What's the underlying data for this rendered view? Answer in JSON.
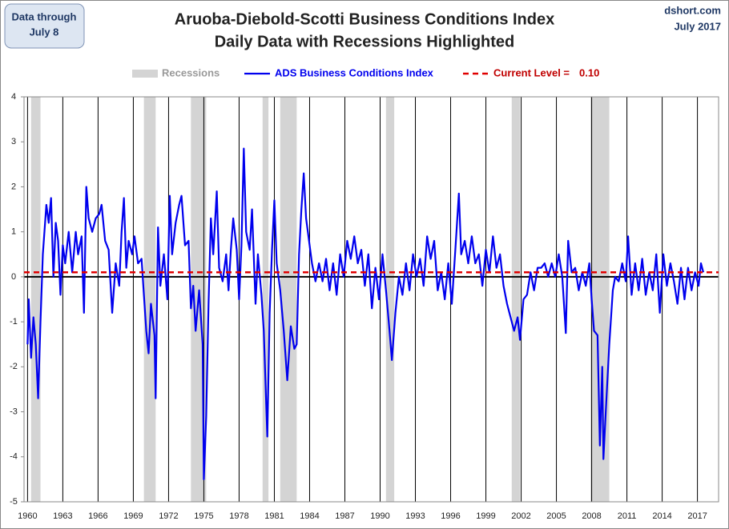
{
  "chart_data": {
    "type": "line",
    "title": "Aruoba-Diebold-Scotti Business Conditions Index",
    "subtitle": "Daily Data with Recessions Highlighted",
    "note": [
      "Data through",
      "July 8"
    ],
    "source": [
      "dshort.com",
      "July 2017"
    ],
    "xlim": [
      1959.7,
      2018.8
    ],
    "ylim": [
      -5,
      4
    ],
    "xticks": [
      1960,
      1963,
      1966,
      1969,
      1972,
      1975,
      1978,
      1981,
      1984,
      1987,
      1990,
      1993,
      1996,
      1999,
      2002,
      2005,
      2008,
      2011,
      2014,
      2017
    ],
    "yticks": [
      -5,
      -4,
      -3,
      -2,
      -1,
      0,
      1,
      2,
      3,
      4
    ],
    "recessions": {
      "name": "Recessions",
      "color": "#d4d4d4",
      "ranges": [
        [
          1960.3,
          1961.1
        ],
        [
          1969.9,
          1970.9
        ],
        [
          1973.9,
          1975.2
        ],
        [
          1980.0,
          1980.5
        ],
        [
          1981.5,
          1982.9
        ],
        [
          1990.5,
          1991.2
        ],
        [
          2001.2,
          2001.9
        ],
        [
          2007.9,
          2009.5
        ]
      ]
    },
    "reference_line": {
      "name": "Current Level =",
      "value": 0.1,
      "label": "0.10",
      "color": "#e00000"
    },
    "x": [
      1960.0,
      1960.1,
      1960.3,
      1960.5,
      1960.7,
      1960.9,
      1961.1,
      1961.3,
      1961.6,
      1961.8,
      1962.0,
      1962.2,
      1962.4,
      1962.6,
      1962.8,
      1963.0,
      1963.2,
      1963.5,
      1963.8,
      1964.1,
      1964.3,
      1964.6,
      1964.8,
      1965.0,
      1965.2,
      1965.5,
      1965.8,
      1966.1,
      1966.3,
      1966.6,
      1966.9,
      1967.2,
      1967.5,
      1967.8,
      1968.0,
      1968.2,
      1968.4,
      1968.6,
      1968.9,
      1969.1,
      1969.4,
      1969.7,
      1969.9,
      1970.1,
      1970.3,
      1970.5,
      1970.8,
      1970.9,
      1971.1,
      1971.3,
      1971.6,
      1971.9,
      1972.1,
      1972.3,
      1972.6,
      1972.9,
      1973.1,
      1973.4,
      1973.7,
      1973.9,
      1974.1,
      1974.3,
      1974.6,
      1974.9,
      1975.0,
      1975.2,
      1975.4,
      1975.6,
      1975.8,
      1976.1,
      1976.3,
      1976.6,
      1976.9,
      1977.1,
      1977.3,
      1977.5,
      1977.8,
      1978.0,
      1978.2,
      1978.4,
      1978.6,
      1978.9,
      1979.1,
      1979.4,
      1979.6,
      1979.9,
      1980.1,
      1980.4,
      1980.6,
      1980.8,
      1981.0,
      1981.2,
      1981.5,
      1981.8,
      1982.1,
      1982.4,
      1982.7,
      1982.9,
      1983.1,
      1983.3,
      1983.5,
      1983.7,
      1983.9,
      1984.2,
      1984.5,
      1984.8,
      1985.1,
      1985.4,
      1985.7,
      1986.0,
      1986.3,
      1986.6,
      1986.9,
      1987.2,
      1987.5,
      1987.8,
      1988.1,
      1988.4,
      1988.7,
      1989.0,
      1989.3,
      1989.6,
      1989.9,
      1990.2,
      1990.5,
      1990.8,
      1991.0,
      1991.3,
      1991.6,
      1991.9,
      1992.2,
      1992.5,
      1992.8,
      1993.1,
      1993.4,
      1993.7,
      1994.0,
      1994.3,
      1994.6,
      1994.9,
      1995.2,
      1995.5,
      1995.8,
      1996.1,
      1996.4,
      1996.7,
      1996.9,
      1997.2,
      1997.5,
      1997.8,
      1998.1,
      1998.4,
      1998.7,
      1999.0,
      1999.3,
      1999.6,
      1999.9,
      2000.2,
      2000.5,
      2000.8,
      2001.1,
      2001.4,
      2001.7,
      2001.9,
      2002.2,
      2002.5,
      2002.8,
      2003.1,
      2003.4,
      2003.7,
      2004.0,
      2004.3,
      2004.6,
      2004.9,
      2005.2,
      2005.5,
      2005.8,
      2006.0,
      2006.3,
      2006.6,
      2006.9,
      2007.2,
      2007.5,
      2007.8,
      2008.0,
      2008.2,
      2008.5,
      2008.7,
      2008.9,
      2009.0,
      2009.2,
      2009.5,
      2009.8,
      2010.0,
      2010.3,
      2010.6,
      2010.9,
      2011.1,
      2011.4,
      2011.7,
      2012.0,
      2012.3,
      2012.6,
      2012.9,
      2013.2,
      2013.5,
      2013.8,
      2014.1,
      2014.4,
      2014.7,
      2015.0,
      2015.3,
      2015.6,
      2015.9,
      2016.2,
      2016.5,
      2016.8,
      2017.1,
      2017.3,
      2017.5
    ],
    "series": [
      {
        "name": "ADS Business Conditions Index",
        "color": "#0000ee",
        "values": [
          -1.5,
          -0.5,
          -1.8,
          -0.9,
          -1.5,
          -2.7,
          -1.0,
          0.5,
          1.6,
          1.2,
          1.75,
          0.0,
          1.2,
          0.8,
          -0.4,
          0.7,
          0.3,
          1.0,
          0.1,
          1.0,
          0.5,
          0.9,
          -0.8,
          2.0,
          1.3,
          1.0,
          1.3,
          1.4,
          1.6,
          0.8,
          0.6,
          -0.8,
          0.3,
          -0.2,
          1.0,
          1.75,
          0.2,
          0.8,
          0.5,
          0.9,
          0.3,
          0.4,
          -0.4,
          -1.2,
          -1.7,
          -0.6,
          -1.3,
          -2.7,
          1.1,
          -0.2,
          0.5,
          -0.5,
          1.8,
          0.5,
          1.2,
          1.6,
          1.8,
          0.7,
          0.8,
          -0.7,
          -0.2,
          -1.2,
          -0.3,
          -1.5,
          -4.5,
          -3.1,
          -0.6,
          1.3,
          0.5,
          1.9,
          0.2,
          -0.1,
          0.5,
          -0.3,
          0.6,
          1.3,
          0.6,
          -0.5,
          0.7,
          2.85,
          1.0,
          0.6,
          1.5,
          -0.6,
          0.5,
          -0.4,
          -1.2,
          -3.55,
          -0.8,
          0.6,
          1.7,
          0.3,
          -0.3,
          -1.2,
          -2.3,
          -1.1,
          -1.6,
          -1.5,
          0.5,
          1.5,
          2.3,
          1.3,
          0.9,
          0.3,
          -0.1,
          0.3,
          -0.1,
          0.4,
          -0.3,
          0.3,
          -0.4,
          0.5,
          0.0,
          0.8,
          0.4,
          0.9,
          0.3,
          0.6,
          -0.2,
          0.5,
          -0.7,
          0.2,
          -0.5,
          0.5,
          -0.3,
          -1.2,
          -1.85,
          -0.8,
          0.0,
          -0.4,
          0.3,
          -0.3,
          0.5,
          0.0,
          0.4,
          -0.2,
          0.9,
          0.4,
          0.8,
          -0.3,
          0.1,
          -0.5,
          0.3,
          -0.6,
          0.6,
          1.85,
          0.5,
          0.8,
          0.3,
          0.9,
          0.3,
          0.5,
          -0.2,
          0.6,
          0.1,
          0.9,
          0.2,
          0.5,
          -0.2,
          -0.6,
          -0.9,
          -1.2,
          -0.9,
          -1.4,
          -0.5,
          -0.4,
          0.1,
          -0.3,
          0.2,
          0.2,
          0.3,
          0.0,
          0.3,
          0.0,
          0.5,
          0.0,
          -1.25,
          0.8,
          0.1,
          0.2,
          -0.3,
          0.1,
          -0.2,
          0.3,
          -0.5,
          -1.2,
          -1.3,
          -3.75,
          -2.0,
          -4.05,
          -3.0,
          -1.5,
          -0.3,
          0.0,
          -0.1,
          0.3,
          -0.1,
          0.9,
          -0.4,
          0.3,
          -0.3,
          0.4,
          -0.4,
          0.1,
          -0.3,
          0.5,
          -0.8,
          0.5,
          -0.2,
          0.3,
          -0.1,
          -0.6,
          0.2,
          -0.5,
          0.2,
          -0.3,
          0.1,
          -0.2,
          0.3,
          0.1
        ]
      }
    ]
  }
}
